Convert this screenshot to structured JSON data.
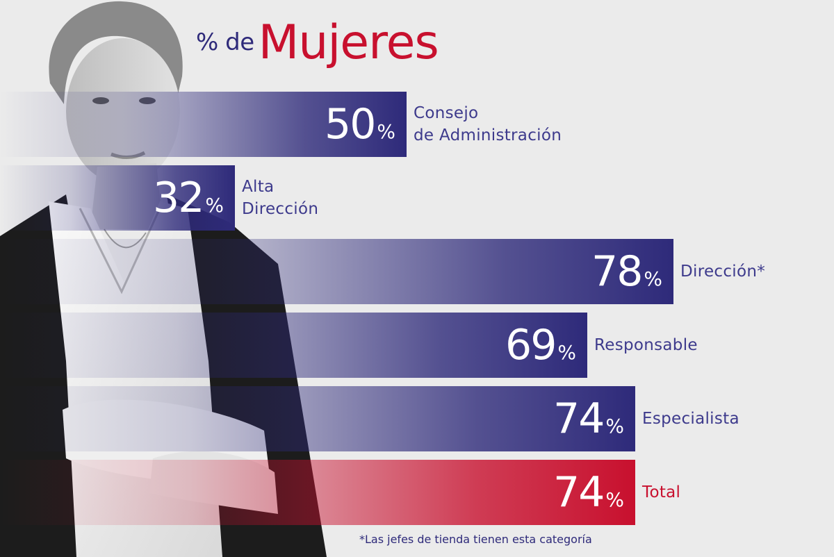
{
  "title": {
    "prefix": "% de",
    "main": "Mujeres"
  },
  "footnote": "*Las jefes de tienda tienen esta categoría",
  "colors": {
    "bar_purple": "#2e2a7a",
    "bar_red": "#c8102e",
    "label_purple": "#3d3a8c",
    "title_red": "#c8102e"
  },
  "chart_data": {
    "type": "bar",
    "orientation": "horizontal",
    "title": "% de Mujeres",
    "unit": "%",
    "categories": [
      "Consejo\nde Administración",
      "Alta\nDirección",
      "Dirección*",
      "Responsable",
      "Especialista",
      "Total"
    ],
    "values": [
      50,
      32,
      78,
      69,
      74,
      74
    ],
    "value_labels": [
      "50",
      "32",
      "78",
      "69",
      "74",
      "74"
    ],
    "highlight": "Total"
  }
}
